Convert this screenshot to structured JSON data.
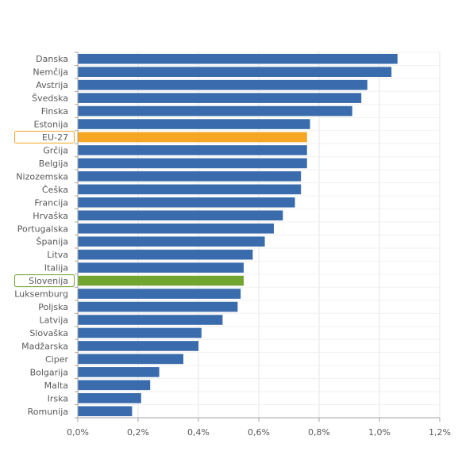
{
  "chart_data": {
    "type": "bar",
    "orientation": "horizontal",
    "categories": [
      "Danska",
      "Nemčija",
      "Avstrija",
      "Švedska",
      "Finska",
      "Estonija",
      "EU-27",
      "Grčija",
      "Belgija",
      "Nizozemska",
      "Češka",
      "Francija",
      "Hrvaška",
      "Portugalska",
      "Španija",
      "Litva",
      "Italija",
      "Slovenija",
      "Luksemburg",
      "Poljska",
      "Latvija",
      "Slovaška",
      "Madžarska",
      "Ciper",
      "Bolgarija",
      "Malta",
      "Irska",
      "Romunija"
    ],
    "values": [
      1.06,
      1.04,
      0.96,
      0.94,
      0.91,
      0.77,
      0.76,
      0.76,
      0.76,
      0.74,
      0.74,
      0.72,
      0.68,
      0.65,
      0.62,
      0.58,
      0.55,
      0.55,
      0.54,
      0.53,
      0.48,
      0.41,
      0.4,
      0.35,
      0.27,
      0.24,
      0.21,
      0.18
    ],
    "highlighted": {
      "EU-27": "#f5a623",
      "Slovenija": "#72a430"
    },
    "highlight_boxes": [
      "EU-27",
      "Slovenija"
    ],
    "colors": {
      "bar": "#3a6cad",
      "grid": "#e6e6e6",
      "axis": "#a6a6a6",
      "text": "#595959"
    },
    "xlim": [
      0,
      1.2
    ],
    "xticks": [
      0,
      0.2,
      0.4,
      0.6,
      0.8,
      1.0,
      1.2
    ],
    "xtick_labels": [
      "0,0%",
      "0,2%",
      "0,4%",
      "0,6%",
      "0,8%",
      "1,0%",
      "1,2%"
    ],
    "grid": true,
    "title": "",
    "xlabel": "",
    "ylabel": ""
  }
}
